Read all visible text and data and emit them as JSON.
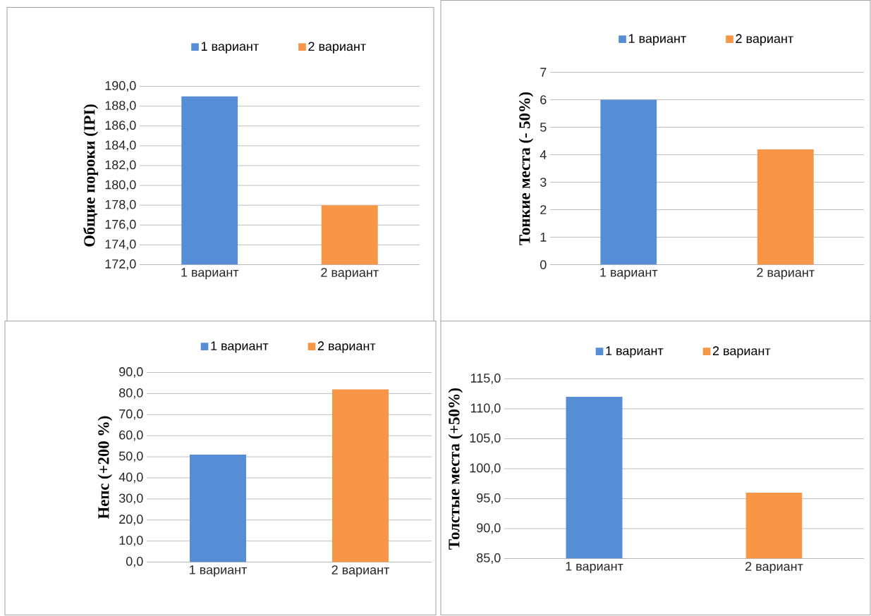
{
  "chart_data": [
    {
      "type": "bar",
      "ylabel": "Общие пороки (IPI)",
      "categories": [
        "1 вариант",
        "2 вариант"
      ],
      "series": [
        {
          "name": "1 вариант",
          "color": "#558ed5",
          "values": [
            189.0,
            null
          ]
        },
        {
          "name": "2 вариант",
          "color": "#f79646",
          "values": [
            null,
            178.0
          ]
        }
      ],
      "ylim": [
        172,
        190
      ],
      "yticks": [
        {
          "value": 172,
          "label": "172,0"
        },
        {
          "value": 174,
          "label": "174,0"
        },
        {
          "value": 176,
          "label": "176,0"
        },
        {
          "value": 178,
          "label": "178,0"
        },
        {
          "value": 180,
          "label": "180,0"
        },
        {
          "value": 182,
          "label": "182,0"
        },
        {
          "value": 184,
          "label": "184,0"
        },
        {
          "value": 186,
          "label": "186,0"
        },
        {
          "value": 188,
          "label": "188,0"
        },
        {
          "value": 190,
          "label": "190,0"
        }
      ],
      "grid": "y",
      "legend": "top"
    },
    {
      "type": "bar",
      "ylabel": "Тонкие места (- 50%)",
      "categories": [
        "1 вариант",
        "2 вариант"
      ],
      "series": [
        {
          "name": "1 вариант",
          "color": "#558ed5",
          "values": [
            6.0,
            null
          ]
        },
        {
          "name": "2 вариант",
          "color": "#f79646",
          "values": [
            null,
            4.2
          ]
        }
      ],
      "ylim": [
        0,
        7
      ],
      "yticks": [
        0,
        1,
        2,
        3,
        4,
        5,
        6,
        7
      ],
      "grid": "y",
      "legend": "top"
    },
    {
      "type": "bar",
      "ylabel": "Непс (+200 %)",
      "categories": [
        "1 вариант",
        "2 вариант"
      ],
      "series": [
        {
          "name": "1 вариант",
          "color": "#558ed5",
          "values": [
            51,
            null
          ]
        },
        {
          "name": "2 вариант",
          "color": "#f79646",
          "values": [
            null,
            82
          ]
        }
      ],
      "ylim": [
        0,
        90
      ],
      "yticks": [
        {
          "value": 0,
          "label": "0,0"
        },
        {
          "value": 10,
          "label": "10,0"
        },
        {
          "value": 20,
          "label": "20,0"
        },
        {
          "value": 30,
          "label": "30,0"
        },
        {
          "value": 40,
          "label": "40,0"
        },
        {
          "value": 50,
          "label": "50,0"
        },
        {
          "value": 60,
          "label": "60,0"
        },
        {
          "value": 70,
          "label": "70,0"
        },
        {
          "value": 80,
          "label": "80,0"
        },
        {
          "value": 90,
          "label": "90,0"
        }
      ],
      "grid": "y",
      "legend": "top"
    },
    {
      "type": "bar",
      "ylabel": "Толстые места (+50%)",
      "categories": [
        "1 вариант",
        "2 вариант"
      ],
      "series": [
        {
          "name": "1 вариант",
          "color": "#558ed5",
          "values": [
            112,
            null
          ]
        },
        {
          "name": "2 вариант",
          "color": "#f79646",
          "values": [
            null,
            96
          ]
        }
      ],
      "ylim": [
        85,
        115
      ],
      "yticks": [
        {
          "value": 85,
          "label": "85,0"
        },
        {
          "value": 90,
          "label": "90,0"
        },
        {
          "value": 95,
          "label": "95,0"
        },
        {
          "value": 100,
          "label": "100,0"
        },
        {
          "value": 105,
          "label": "105,0"
        },
        {
          "value": 110,
          "label": "110,0"
        },
        {
          "value": 115,
          "label": "115,0"
        }
      ],
      "grid": "y",
      "legend": "top"
    }
  ]
}
